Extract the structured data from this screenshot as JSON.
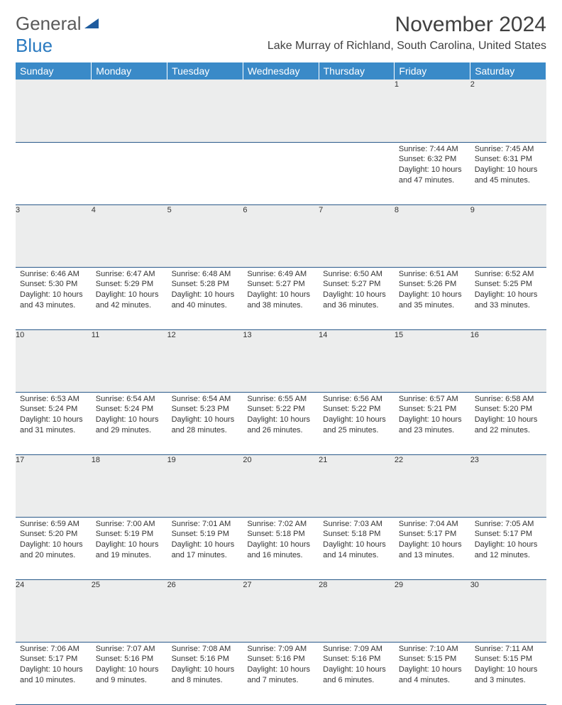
{
  "logo": {
    "line1": "General",
    "line2": "Blue",
    "tri_color": "#1f5c9e"
  },
  "title": "November 2024",
  "location": "Lake Murray of Richland, South Carolina, United States",
  "header_bg": "#3a8ac8",
  "daynum_bg": "#eceded",
  "border_color": "#2a5a8a",
  "dow": [
    "Sunday",
    "Monday",
    "Tuesday",
    "Wednesday",
    "Thursday",
    "Friday",
    "Saturday"
  ],
  "weeks": [
    {
      "days": [
        {
          "n": "",
          "sr": "",
          "ss": "",
          "dl": ""
        },
        {
          "n": "",
          "sr": "",
          "ss": "",
          "dl": ""
        },
        {
          "n": "",
          "sr": "",
          "ss": "",
          "dl": ""
        },
        {
          "n": "",
          "sr": "",
          "ss": "",
          "dl": ""
        },
        {
          "n": "",
          "sr": "",
          "ss": "",
          "dl": ""
        },
        {
          "n": "1",
          "sr": "Sunrise: 7:44 AM",
          "ss": "Sunset: 6:32 PM",
          "dl": "Daylight: 10 hours and 47 minutes."
        },
        {
          "n": "2",
          "sr": "Sunrise: 7:45 AM",
          "ss": "Sunset: 6:31 PM",
          "dl": "Daylight: 10 hours and 45 minutes."
        }
      ]
    },
    {
      "days": [
        {
          "n": "3",
          "sr": "Sunrise: 6:46 AM",
          "ss": "Sunset: 5:30 PM",
          "dl": "Daylight: 10 hours and 43 minutes."
        },
        {
          "n": "4",
          "sr": "Sunrise: 6:47 AM",
          "ss": "Sunset: 5:29 PM",
          "dl": "Daylight: 10 hours and 42 minutes."
        },
        {
          "n": "5",
          "sr": "Sunrise: 6:48 AM",
          "ss": "Sunset: 5:28 PM",
          "dl": "Daylight: 10 hours and 40 minutes."
        },
        {
          "n": "6",
          "sr": "Sunrise: 6:49 AM",
          "ss": "Sunset: 5:27 PM",
          "dl": "Daylight: 10 hours and 38 minutes."
        },
        {
          "n": "7",
          "sr": "Sunrise: 6:50 AM",
          "ss": "Sunset: 5:27 PM",
          "dl": "Daylight: 10 hours and 36 minutes."
        },
        {
          "n": "8",
          "sr": "Sunrise: 6:51 AM",
          "ss": "Sunset: 5:26 PM",
          "dl": "Daylight: 10 hours and 35 minutes."
        },
        {
          "n": "9",
          "sr": "Sunrise: 6:52 AM",
          "ss": "Sunset: 5:25 PM",
          "dl": "Daylight: 10 hours and 33 minutes."
        }
      ]
    },
    {
      "days": [
        {
          "n": "10",
          "sr": "Sunrise: 6:53 AM",
          "ss": "Sunset: 5:24 PM",
          "dl": "Daylight: 10 hours and 31 minutes."
        },
        {
          "n": "11",
          "sr": "Sunrise: 6:54 AM",
          "ss": "Sunset: 5:24 PM",
          "dl": "Daylight: 10 hours and 29 minutes."
        },
        {
          "n": "12",
          "sr": "Sunrise: 6:54 AM",
          "ss": "Sunset: 5:23 PM",
          "dl": "Daylight: 10 hours and 28 minutes."
        },
        {
          "n": "13",
          "sr": "Sunrise: 6:55 AM",
          "ss": "Sunset: 5:22 PM",
          "dl": "Daylight: 10 hours and 26 minutes."
        },
        {
          "n": "14",
          "sr": "Sunrise: 6:56 AM",
          "ss": "Sunset: 5:22 PM",
          "dl": "Daylight: 10 hours and 25 minutes."
        },
        {
          "n": "15",
          "sr": "Sunrise: 6:57 AM",
          "ss": "Sunset: 5:21 PM",
          "dl": "Daylight: 10 hours and 23 minutes."
        },
        {
          "n": "16",
          "sr": "Sunrise: 6:58 AM",
          "ss": "Sunset: 5:20 PM",
          "dl": "Daylight: 10 hours and 22 minutes."
        }
      ]
    },
    {
      "days": [
        {
          "n": "17",
          "sr": "Sunrise: 6:59 AM",
          "ss": "Sunset: 5:20 PM",
          "dl": "Daylight: 10 hours and 20 minutes."
        },
        {
          "n": "18",
          "sr": "Sunrise: 7:00 AM",
          "ss": "Sunset: 5:19 PM",
          "dl": "Daylight: 10 hours and 19 minutes."
        },
        {
          "n": "19",
          "sr": "Sunrise: 7:01 AM",
          "ss": "Sunset: 5:19 PM",
          "dl": "Daylight: 10 hours and 17 minutes."
        },
        {
          "n": "20",
          "sr": "Sunrise: 7:02 AM",
          "ss": "Sunset: 5:18 PM",
          "dl": "Daylight: 10 hours and 16 minutes."
        },
        {
          "n": "21",
          "sr": "Sunrise: 7:03 AM",
          "ss": "Sunset: 5:18 PM",
          "dl": "Daylight: 10 hours and 14 minutes."
        },
        {
          "n": "22",
          "sr": "Sunrise: 7:04 AM",
          "ss": "Sunset: 5:17 PM",
          "dl": "Daylight: 10 hours and 13 minutes."
        },
        {
          "n": "23",
          "sr": "Sunrise: 7:05 AM",
          "ss": "Sunset: 5:17 PM",
          "dl": "Daylight: 10 hours and 12 minutes."
        }
      ]
    },
    {
      "days": [
        {
          "n": "24",
          "sr": "Sunrise: 7:06 AM",
          "ss": "Sunset: 5:17 PM",
          "dl": "Daylight: 10 hours and 10 minutes."
        },
        {
          "n": "25",
          "sr": "Sunrise: 7:07 AM",
          "ss": "Sunset: 5:16 PM",
          "dl": "Daylight: 10 hours and 9 minutes."
        },
        {
          "n": "26",
          "sr": "Sunrise: 7:08 AM",
          "ss": "Sunset: 5:16 PM",
          "dl": "Daylight: 10 hours and 8 minutes."
        },
        {
          "n": "27",
          "sr": "Sunrise: 7:09 AM",
          "ss": "Sunset: 5:16 PM",
          "dl": "Daylight: 10 hours and 7 minutes."
        },
        {
          "n": "28",
          "sr": "Sunrise: 7:09 AM",
          "ss": "Sunset: 5:16 PM",
          "dl": "Daylight: 10 hours and 6 minutes."
        },
        {
          "n": "29",
          "sr": "Sunrise: 7:10 AM",
          "ss": "Sunset: 5:15 PM",
          "dl": "Daylight: 10 hours and 4 minutes."
        },
        {
          "n": "30",
          "sr": "Sunrise: 7:11 AM",
          "ss": "Sunset: 5:15 PM",
          "dl": "Daylight: 10 hours and 3 minutes."
        }
      ]
    }
  ]
}
